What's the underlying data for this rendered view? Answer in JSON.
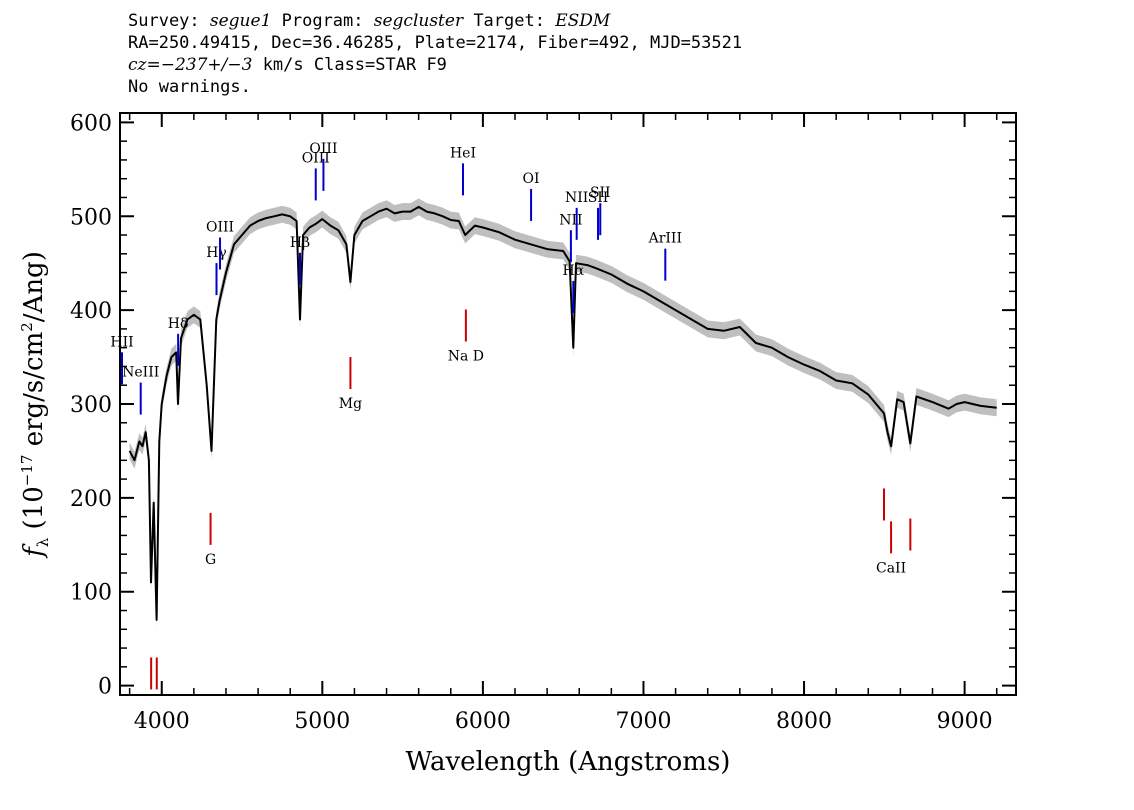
{
  "header": {
    "line1": {
      "survey_label": "Survey: ",
      "survey": "segue1",
      "program_label": " Program: ",
      "program": "segcluster",
      "target_label": " Target: ",
      "target": "ESDM"
    },
    "line2": "RA=250.49415, Dec=36.46285, Plate=2174, Fiber=492, MJD=53521",
    "line3": {
      "cz": "cz=−237+/−3",
      "rest": " km/s Class=STAR F9"
    },
    "line4": "No warnings."
  },
  "chart_data": {
    "type": "line",
    "xlabel": "Wavelength (Angstroms)",
    "ylabel": "f_λ (10^-17 erg/s/cm^2/Ang)",
    "xlim": [
      3740,
      9320
    ],
    "ylim": [
      -10,
      610
    ],
    "xticks": [
      4000,
      5000,
      6000,
      7000,
      8000,
      9000
    ],
    "yticks": [
      0,
      100,
      200,
      300,
      400,
      500,
      600
    ],
    "grid": false,
    "series": [
      {
        "color": "#000000",
        "error_band_color": "#bfbfbf",
        "x": [
          3800,
          3830,
          3860,
          3880,
          3900,
          3920,
          3933,
          3950,
          3968,
          3985,
          4000,
          4030,
          4060,
          4090,
          4101,
          4120,
          4160,
          4200,
          4240,
          4280,
          4310,
          4340,
          4360,
          4400,
          4450,
          4500,
          4550,
          4600,
          4650,
          4700,
          4750,
          4800,
          4840,
          4861,
          4880,
          4920,
          4960,
          5000,
          5050,
          5100,
          5150,
          5175,
          5200,
          5250,
          5300,
          5350,
          5400,
          5450,
          5500,
          5550,
          5600,
          5650,
          5700,
          5750,
          5800,
          5850,
          5890,
          5950,
          6000,
          6100,
          6200,
          6300,
          6400,
          6500,
          6540,
          6563,
          6580,
          6650,
          6700,
          6800,
          6900,
          7000,
          7100,
          7200,
          7300,
          7400,
          7500,
          7600,
          7700,
          7800,
          7900,
          8000,
          8100,
          8200,
          8300,
          8400,
          8498,
          8520,
          8542,
          8580,
          8620,
          8662,
          8700,
          8800,
          8900,
          8950,
          9000,
          9100,
          9200
        ],
        "y": [
          250,
          240,
          260,
          255,
          270,
          240,
          110,
          195,
          70,
          260,
          300,
          330,
          350,
          355,
          300,
          370,
          390,
          395,
          390,
          320,
          250,
          390,
          410,
          440,
          470,
          480,
          490,
          495,
          498,
          500,
          502,
          500,
          495,
          390,
          480,
          488,
          492,
          497,
          490,
          485,
          470,
          430,
          480,
          495,
          500,
          505,
          508,
          503,
          505,
          505,
          510,
          505,
          503,
          500,
          496,
          495,
          480,
          490,
          488,
          483,
          475,
          470,
          465,
          463,
          452,
          360,
          450,
          448,
          445,
          438,
          428,
          420,
          410,
          400,
          390,
          380,
          378,
          382,
          365,
          360,
          350,
          342,
          335,
          325,
          322,
          310,
          290,
          270,
          255,
          305,
          302,
          258,
          308,
          302,
          295,
          300,
          302,
          298,
          296
        ]
      }
    ],
    "emission_lines": [
      {
        "label": "HII",
        "x": 3727
      },
      {
        "label": "NeIII",
        "x": 3869
      },
      {
        "label": "Hδ",
        "x": 4102
      },
      {
        "label": "Hγ",
        "x": 4341
      },
      {
        "label": "OIII",
        "x": 4363
      },
      {
        "label": "Hβ",
        "x": 4861
      },
      {
        "label": "OIII",
        "x": 4959
      },
      {
        "label": "OIII",
        "x": 5007
      },
      {
        "label": "HeI",
        "x": 5876
      },
      {
        "label": "OI",
        "x": 6300
      },
      {
        "label": "NII",
        "x": 6548
      },
      {
        "label": "Hα",
        "x": 6563
      },
      {
        "label": "NII",
        "x": 6584
      },
      {
        "label": "SII",
        "x": 6717
      },
      {
        "label": "SII",
        "x": 6731
      },
      {
        "label": "ArIII",
        "x": 7136
      }
    ],
    "absorption_lines": [
      {
        "label": "",
        "x": 3934
      },
      {
        "label": "",
        "x": 3969
      },
      {
        "label": "G",
        "x": 4304
      },
      {
        "label": "Mg",
        "x": 5175
      },
      {
        "label": "Na D",
        "x": 5894
      },
      {
        "label": "",
        "x": 8498
      },
      {
        "label": "CaII",
        "x": 8542
      },
      {
        "label": "",
        "x": 8662
      }
    ]
  }
}
